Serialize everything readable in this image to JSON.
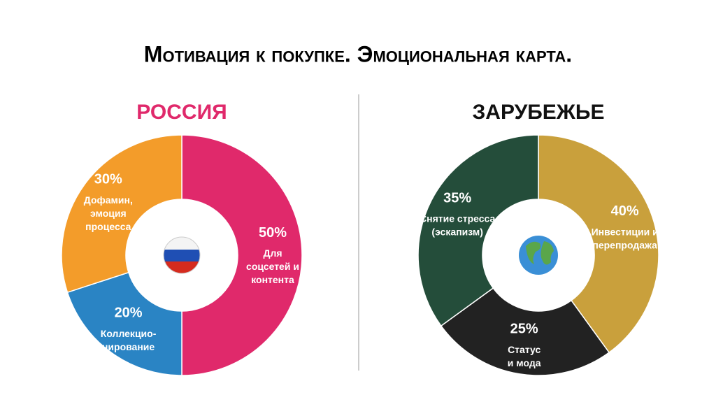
{
  "title": "Мотивация к покупке. Эмоциональная карта.",
  "chart_data": [
    {
      "type": "donut",
      "title": "РОССИЯ",
      "title_color": "#e0296b",
      "categories": [
        [
          "Для",
          "соцсетей и",
          "контента"
        ],
        [
          "Коллекцио-",
          "нирование"
        ],
        [
          "Дофамин,",
          "эмоция",
          "процесса"
        ]
      ],
      "values": [
        50,
        20,
        30
      ],
      "value_labels": [
        "50%",
        "20%",
        "30%"
      ],
      "colors": [
        "#e0296b",
        "#2a84c4",
        "#f39c2a"
      ]
    },
    {
      "type": "donut",
      "title": "ЗАРУБЕЖЬЕ",
      "title_color": "#111111",
      "categories": [
        [
          "Инвестиции и",
          "перепродажа"
        ],
        [
          "Статус",
          "и мода"
        ],
        [
          "Снятие стресса",
          "(эскапизм)"
        ]
      ],
      "values": [
        40,
        25,
        35
      ],
      "value_labels": [
        "40%",
        "25%",
        "35%"
      ],
      "colors": [
        "#c9a03c",
        "#222222",
        "#244d3a"
      ]
    }
  ]
}
